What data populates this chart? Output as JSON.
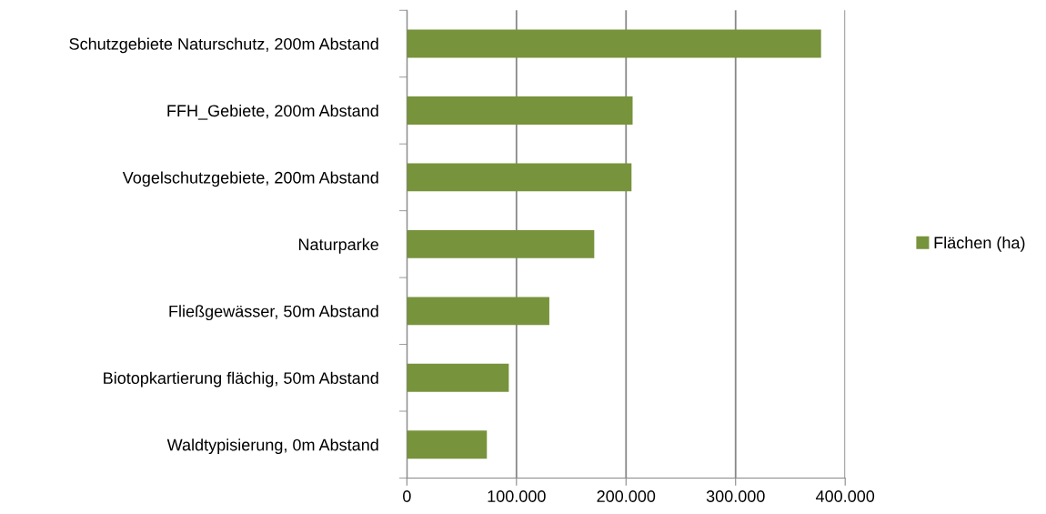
{
  "chart_data": {
    "type": "bar",
    "orientation": "horizontal",
    "categories": [
      "Schutzgebiete Naturschutz, 200m Abstand",
      "FFH_Gebiete, 200m Abstand",
      "Vogelschutzgebiete, 200m Abstand",
      "Naturparke",
      "Fließgewässer, 50m Abstand",
      "Biotopkartierung flächig, 50m Abstand",
      "Waldtypisierung, 0m Abstand"
    ],
    "series": [
      {
        "name": "Flächen (ha)",
        "color": "#77933c",
        "values": [
          378000,
          206000,
          205000,
          171000,
          130000,
          93000,
          73000
        ]
      }
    ],
    "xlim": [
      0,
      400000
    ],
    "xticks": [
      0,
      {
        "value": 100000,
        "label": "100.000"
      },
      {
        "value": 200000,
        "label": "200.000"
      },
      {
        "value": 300000,
        "label": "300.000"
      },
      {
        "value": 400000,
        "label": "400.000"
      }
    ],
    "grid": "x",
    "legend": "right"
  }
}
